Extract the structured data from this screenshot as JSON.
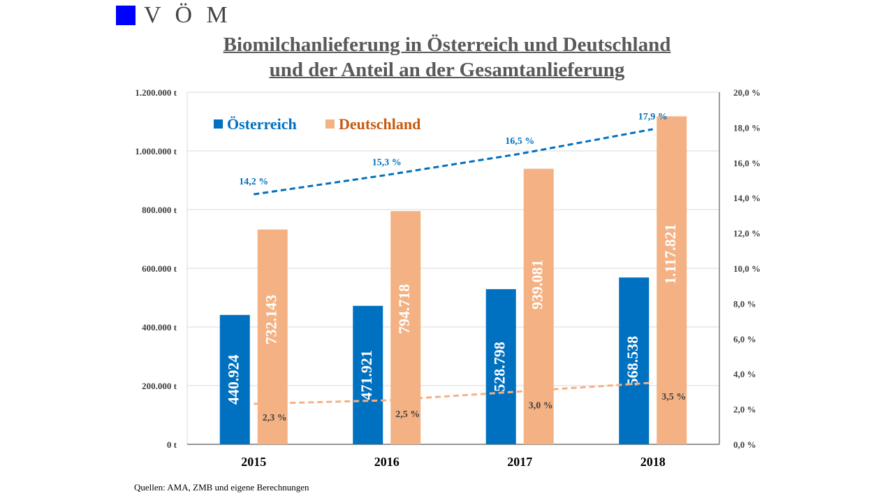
{
  "logo": {
    "text": "V Ö M",
    "color": "#0000ff"
  },
  "title_lines": [
    "Biomilchanlieferung in Österreich und Deutschland",
    "und der Anteil an der Gesamtanlieferung"
  ],
  "source": "Quellen: AMA, ZMB und eigene Berechnungen",
  "colors": {
    "at": "#0070c0",
    "de": "#f4b183",
    "at_legend_text": "#0070c0",
    "de_legend_text": "#c55a11",
    "de_line": "#f4b183",
    "axis_text": "#404040",
    "grid": "#d9d9d9"
  },
  "chart_data": {
    "type": "bar",
    "categories": [
      "2015",
      "2016",
      "2017",
      "2018"
    ],
    "series": [
      {
        "name": "Österreich",
        "values": [
          440924,
          471921,
          528798,
          568538
        ],
        "labels": [
          "440.924",
          "471.921",
          "528.798",
          "568.538"
        ]
      },
      {
        "name": "Deutschland",
        "values": [
          732143,
          794718,
          939081,
          1117821
        ],
        "labels": [
          "732.143",
          "794.718",
          "939.081",
          "1.117.821"
        ]
      }
    ],
    "lines": [
      {
        "values": [
          14.2,
          15.3,
          16.5,
          17.9
        ],
        "labels": [
          "14,2 %",
          "15,3 %",
          "16,5 %",
          "17,9 %"
        ],
        "axis": "right"
      },
      {
        "values": [
          2.3,
          2.5,
          3.0,
          3.5
        ],
        "labels": [
          "2,3 %",
          "2,5 %",
          "3,0 %",
          "3,5 %"
        ],
        "axis": "right"
      }
    ],
    "ylim": [
      0,
      1200000
    ],
    "yticks": [
      0,
      200000,
      400000,
      600000,
      800000,
      1000000,
      1200000
    ],
    "ytick_labels": [
      "0 t",
      "200.000 t",
      "400.000 t",
      "600.000 t",
      "800.000 t",
      "1.000.000 t",
      "1.200.000 t"
    ],
    "y2lim": [
      0,
      20
    ],
    "y2ticks": [
      0,
      2,
      4,
      6,
      8,
      10,
      12,
      14,
      16,
      18,
      20
    ],
    "y2tick_labels": [
      "0,0 %",
      "2,0 %",
      "4,0 %",
      "6,0 %",
      "8,0 %",
      "10,0 %",
      "12,0 %",
      "14,0 %",
      "16,0 %",
      "18,0 %",
      "20,0 %"
    ],
    "grid": true,
    "legend_position": "top-left"
  }
}
